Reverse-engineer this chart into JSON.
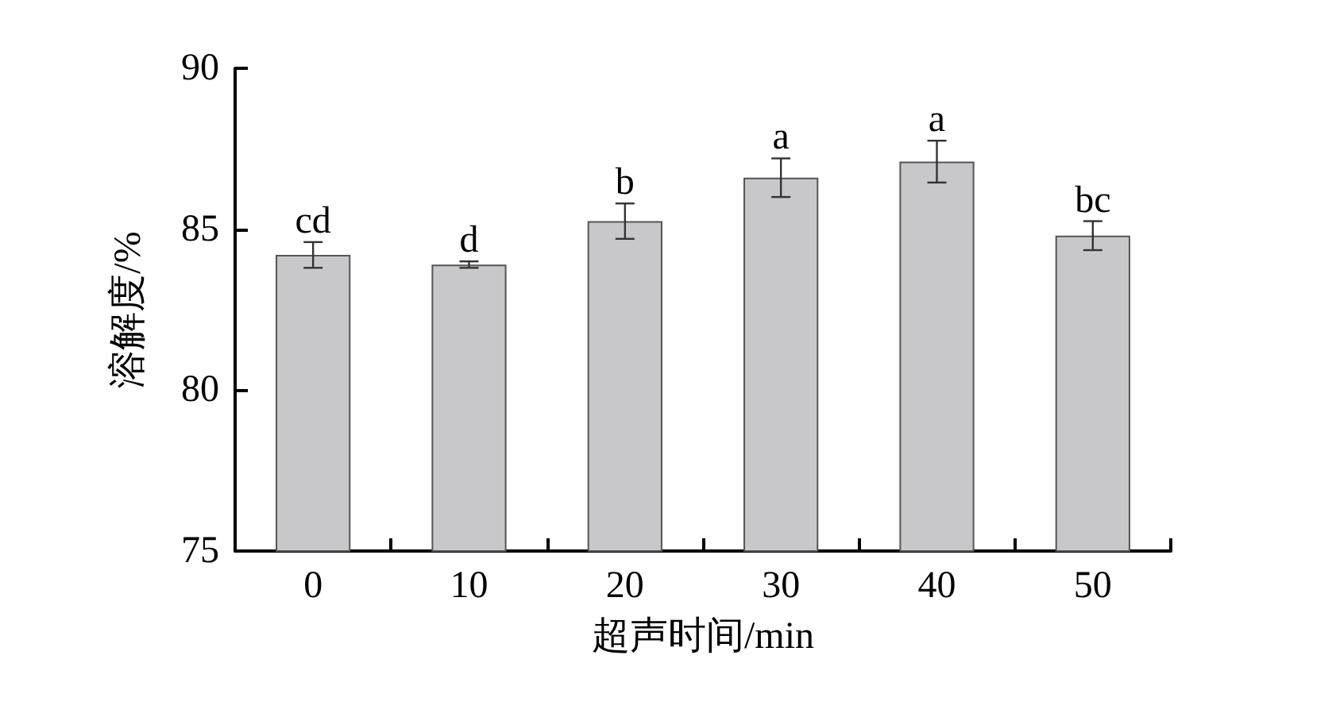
{
  "chart_data": {
    "type": "bar",
    "xlabel": "超声时间/min",
    "ylabel": "溶解度/%",
    "categories": [
      "0",
      "10",
      "20",
      "30",
      "40",
      "50"
    ],
    "values": [
      84.2,
      83.9,
      85.25,
      86.6,
      87.1,
      84.8
    ],
    "errors": [
      0.4,
      0.1,
      0.55,
      0.6,
      0.65,
      0.45
    ],
    "color": "#c8c8ca",
    "ylim": [
      75,
      90
    ],
    "yticks": [
      75,
      80,
      85,
      90
    ],
    "grid": false,
    "annotations": [
      {
        "text": "cd",
        "x": "0",
        "y": 84.6
      },
      {
        "text": "d",
        "x": "10",
        "y": 84.0
      },
      {
        "text": "b",
        "x": "20",
        "y": 85.8
      },
      {
        "text": "a",
        "x": "30",
        "y": 87.2
      },
      {
        "text": "a",
        "x": "40",
        "y": 87.75
      },
      {
        "text": "bc",
        "x": "50",
        "y": 85.25
      }
    ]
  }
}
